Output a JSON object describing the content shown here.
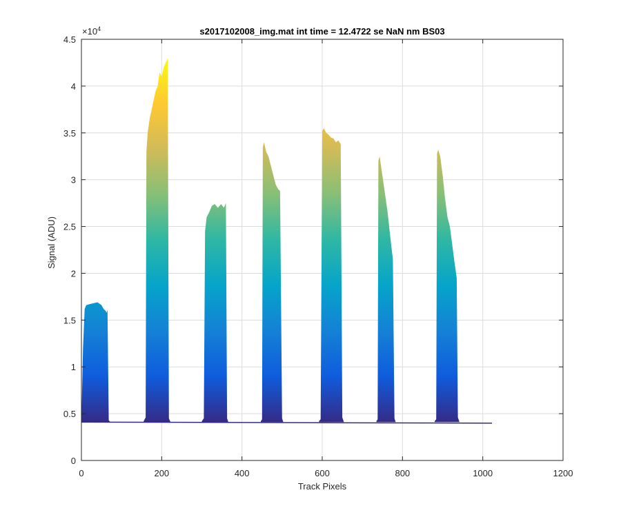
{
  "chart_data": {
    "type": "area",
    "title": "s2017102008_img.mat int time = 12.4722 se  NaN nm BS03",
    "xlabel": "Track Pixels",
    "ylabel": "Signal (ADU)",
    "y_exponent_label": "×10",
    "y_exponent_power": "4",
    "xlim": [
      0,
      1200
    ],
    "ylim": [
      0,
      45000
    ],
    "x_ticks": [
      0,
      200,
      400,
      600,
      800,
      1000,
      1200
    ],
    "x_tick_labels": [
      "0",
      "200",
      "400",
      "600",
      "800",
      "1000",
      "1200"
    ],
    "y_ticks": [
      0,
      5000,
      10000,
      15000,
      20000,
      25000,
      30000,
      35000,
      40000,
      45000
    ],
    "y_tick_labels": [
      "0",
      "0.5",
      "1",
      "1.5",
      "2",
      "2.5",
      "3",
      "3.5",
      "4",
      "4.5"
    ],
    "grid": true,
    "baseline": 4100,
    "colormap": [
      "#352a87",
      "#0f5cdd",
      "#1481d6",
      "#06a4ca",
      "#2eb7a4",
      "#87bf77",
      "#d1bb59",
      "#fec832",
      "#f9fb0e"
    ],
    "series": [
      {
        "x": [
          0,
          4,
          8,
          12,
          20,
          30,
          40,
          50,
          55,
          60,
          63,
          65,
          68,
          72
        ],
        "y": [
          4100,
          12000,
          16200,
          16600,
          16700,
          16800,
          16900,
          16600,
          16200,
          16000,
          15800,
          16100,
          4300,
          4100
        ]
      },
      {
        "x": [
          155,
          160,
          162,
          165,
          170,
          175,
          180,
          185,
          190,
          195,
          200,
          205,
          210,
          215,
          218,
          222
        ],
        "y": [
          4200,
          4600,
          33000,
          35000,
          36500,
          37500,
          38500,
          39500,
          40000,
          41500,
          41000,
          42000,
          42500,
          43000,
          4500,
          4100
        ]
      },
      {
        "x": [
          300,
          305,
          308,
          312,
          318,
          325,
          332,
          340,
          348,
          355,
          360,
          363,
          366
        ],
        "y": [
          4200,
          4500,
          24500,
          26000,
          26500,
          27200,
          27400,
          27000,
          27400,
          27000,
          27500,
          4500,
          4100
        ]
      },
      {
        "x": [
          447,
          450,
          452,
          455,
          460,
          466,
          472,
          478,
          484,
          490,
          495,
          500,
          503
        ],
        "y": [
          4200,
          4400,
          33500,
          34000,
          33000,
          32500,
          31500,
          30500,
          29500,
          29000,
          28800,
          4500,
          4100
        ]
      },
      {
        "x": [
          592,
          596,
          600,
          604,
          610,
          616,
          622,
          628,
          634,
          640,
          646,
          650,
          654
        ],
        "y": [
          4200,
          4400,
          35200,
          35500,
          35000,
          34800,
          34500,
          34400,
          34000,
          34200,
          33800,
          4600,
          4100
        ]
      },
      {
        "x": [
          735,
          738,
          740,
          743,
          748,
          753,
          758,
          763,
          768,
          772,
          776,
          780,
          783
        ],
        "y": [
          4200,
          4400,
          32000,
          32500,
          31000,
          29500,
          28000,
          26500,
          24500,
          23000,
          21500,
          4500,
          4100
        ]
      },
      {
        "x": [
          880,
          884,
          886,
          889,
          894,
          900,
          906,
          912,
          918,
          924,
          930,
          935,
          938,
          942
        ],
        "y": [
          4200,
          4400,
          32800,
          33200,
          32500,
          30500,
          28000,
          26000,
          25000,
          23000,
          21000,
          19500,
          4600,
          4100
        ]
      }
    ]
  }
}
